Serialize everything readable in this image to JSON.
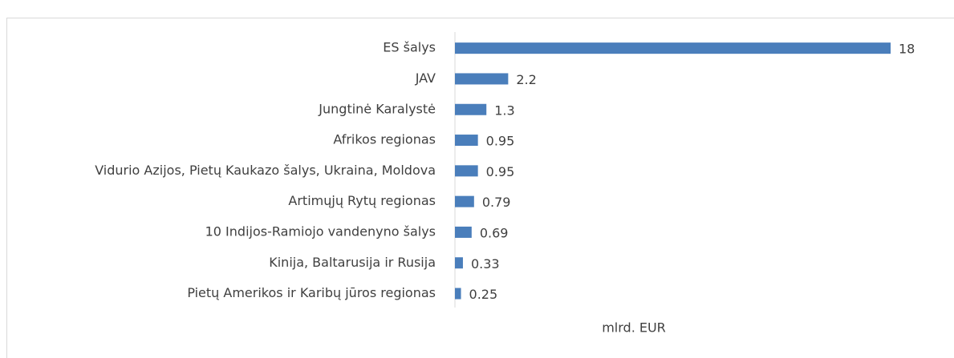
{
  "chart_data": {
    "type": "barh",
    "categories": [
      "ES šalys",
      "JAV",
      "Jungtinė Karalystė",
      "Afrikos regionas",
      "Vidurio Azijos, Pietų Kaukazo šalys, Ukraina, Moldova",
      "Artimųjų Rytų regionas",
      "10 Indijos-Ramiojo vandenyno šalys",
      "Kinija, Baltarusija ir Rusija",
      "Pietų Amerikos ir Karibų jūros regionas"
    ],
    "values": [
      18,
      2.2,
      1.3,
      0.95,
      0.95,
      0.79,
      0.69,
      0.33,
      0.25
    ],
    "color": "#4a7ebb",
    "xlim": [
      0,
      18
    ],
    "x_label": "mlrd. EUR"
  }
}
